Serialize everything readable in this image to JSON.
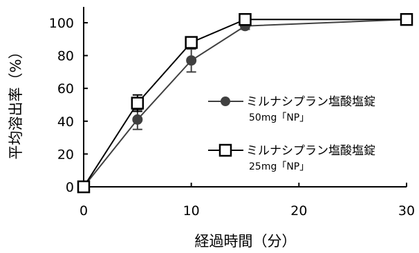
{
  "chart_data": {
    "type": "line",
    "xlabel": "経過時間（分）",
    "ylabel": "平均溶出率（%）",
    "xlim": [
      0,
      30
    ],
    "ylim": [
      0,
      100
    ],
    "x_ticks": [
      0,
      10,
      20,
      30
    ],
    "y_ticks": [
      0,
      20,
      40,
      60,
      80,
      100
    ],
    "grid": false,
    "legend_position": "right",
    "series": [
      {
        "name": "ミルナシプラン塩酸塩錠",
        "sub": "50mg「NP」",
        "marker": "filled-circle",
        "color": "#404040",
        "x": [
          0,
          5,
          10,
          15,
          30
        ],
        "y": [
          0,
          41,
          77,
          98,
          102
        ],
        "err": [
          0,
          6,
          7,
          2,
          0
        ]
      },
      {
        "name": "ミルナシプラン塩酸塩錠",
        "sub": "25mg「NP」",
        "marker": "open-square",
        "color": "#000000",
        "x": [
          0,
          5,
          10,
          15,
          30
        ],
        "y": [
          0,
          51,
          88,
          102,
          102
        ],
        "err": [
          0,
          5,
          0,
          0,
          0
        ]
      }
    ]
  }
}
